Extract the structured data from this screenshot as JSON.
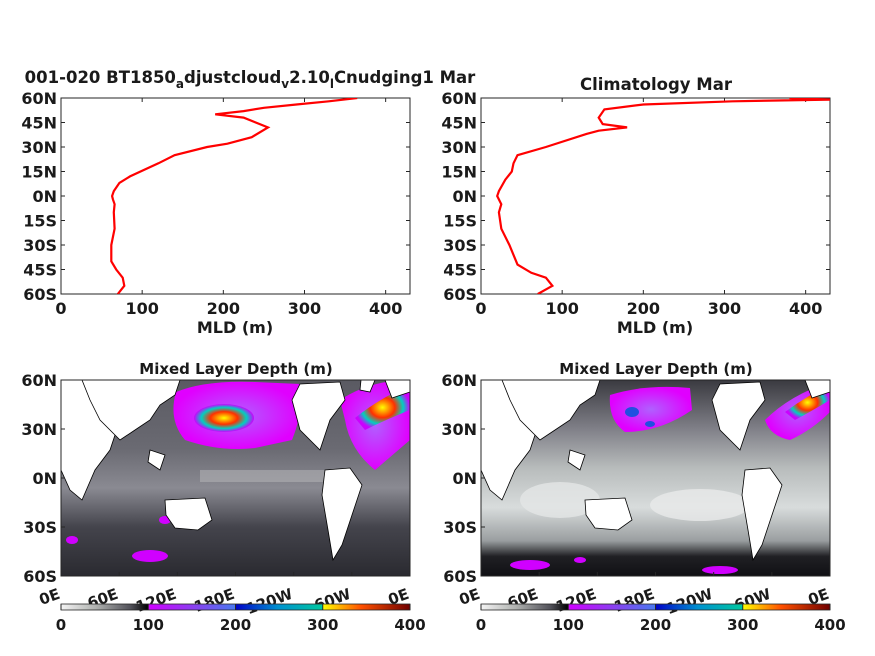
{
  "chart_data": [
    {
      "type": "line",
      "title_parts": [
        "001-020 BT1850",
        "a",
        "djustcloud",
        "v",
        "2.10",
        "l",
        "Cnudging1 Mar"
      ],
      "xlabel": "MLD (m)",
      "xlim": [
        0,
        430
      ],
      "ylim": [
        -60,
        60
      ],
      "xticks": [
        "0",
        "100",
        "200",
        "300",
        "400"
      ],
      "xtick_values": [
        0,
        100,
        200,
        300,
        400
      ],
      "yticks": [
        "60N",
        "45N",
        "30N",
        "15N",
        "0N",
        "15S",
        "30S",
        "45S",
        "60S"
      ],
      "ytick_values": [
        60,
        45,
        30,
        15,
        0,
        -15,
        -30,
        -45,
        -60
      ],
      "line_color": "#ff0000",
      "series": [
        {
          "x": [
            70,
            78,
            76,
            68,
            62,
            62,
            66,
            65,
            66,
            64,
            63,
            65,
            72,
            85,
            120,
            140,
            180,
            205,
            235,
            255,
            225,
            190,
            225,
            250,
            290,
            330,
            365
          ],
          "y": [
            -60,
            -55,
            -50,
            -45,
            -40,
            -30,
            -20,
            -10,
            -5,
            -2,
            0,
            3,
            8,
            12,
            20,
            25,
            30,
            32,
            36,
            42,
            48,
            50,
            52,
            54,
            56,
            58,
            60
          ]
        }
      ]
    },
    {
      "type": "line",
      "title_parts": [
        "Climatology Mar"
      ],
      "xlabel": "MLD (m)",
      "xlim": [
        0,
        430
      ],
      "ylim": [
        -60,
        60
      ],
      "xticks": [
        "0",
        "100",
        "200",
        "300",
        "400"
      ],
      "xtick_values": [
        0,
        100,
        200,
        300,
        400
      ],
      "yticks": [
        "60N",
        "45N",
        "30N",
        "15N",
        "0N",
        "15S",
        "30S",
        "45S",
        "60S"
      ],
      "ytick_values": [
        60,
        45,
        30,
        15,
        0,
        -15,
        -30,
        -45,
        -60
      ],
      "line_color": "#ff0000",
      "series": [
        {
          "x": [
            70,
            88,
            80,
            62,
            45,
            35,
            25,
            22,
            25,
            20,
            22,
            30,
            38,
            40,
            45,
            80,
            130,
            145,
            180,
            150,
            145,
            152,
            200,
            310,
            430,
            380
          ],
          "y": [
            -60,
            -55,
            -50,
            -47,
            -42,
            -30,
            -20,
            -10,
            -5,
            0,
            3,
            10,
            15,
            20,
            25,
            30,
            38,
            40,
            42,
            44,
            48,
            53,
            56,
            58,
            59,
            60
          ]
        }
      ]
    },
    {
      "type": "heatmap",
      "title": "Mixed Layer Depth (m)",
      "xlim": [
        0,
        360
      ],
      "ylim": [
        -60,
        60
      ],
      "xticks": [
        "0E",
        "60E",
        "120E",
        "180E",
        "120W",
        "60W",
        "0E"
      ],
      "xtick_values": [
        0,
        60,
        120,
        180,
        240,
        300,
        360
      ],
      "yticks": [
        "60N",
        "30N",
        "0N",
        "30S",
        "60S"
      ],
      "ytick_values": [
        60,
        30,
        0,
        -30,
        -60
      ],
      "colorbar_ticks": [
        "0",
        "100",
        "200",
        "300",
        "400"
      ],
      "colorbar_values": [
        0,
        100,
        200,
        300,
        400
      ],
      "colormap": [
        [
          0,
          "#f0f0f0"
        ],
        [
          40,
          "#a8aaa8"
        ],
        [
          80,
          "#4a4a52"
        ],
        [
          100,
          "#000000"
        ],
        [
          100,
          "#cc00ff"
        ],
        [
          150,
          "#8a3cf0"
        ],
        [
          190,
          "#6070f0"
        ],
        [
          200,
          "#4060f0"
        ],
        [
          200,
          "#0000c8"
        ],
        [
          250,
          "#0080d0"
        ],
        [
          300,
          "#00c8a0"
        ],
        [
          300,
          "#ffff00"
        ],
        [
          350,
          "#ff4000"
        ],
        [
          400,
          "#600000"
        ]
      ],
      "features": [
        {
          "name": "kuroshio-extension",
          "lon": [
            145,
            195
          ],
          "lat": [
            30,
            45
          ],
          "value": 380
        },
        {
          "name": "north-atlantic",
          "lon": [
            305,
            360
          ],
          "lat": [
            45,
            60
          ],
          "value": 390
        },
        {
          "name": "subtropical-north-pacific",
          "lon": [
            130,
            250
          ],
          "lat": [
            15,
            55
          ],
          "value": 110
        },
        {
          "name": "southern-ocean-patches",
          "lon": [
            60,
            220
          ],
          "lat": [
            -60,
            -40
          ],
          "value": 110
        }
      ]
    },
    {
      "type": "heatmap",
      "title": "Mixed Layer Depth (m)",
      "xlim": [
        0,
        360
      ],
      "ylim": [
        -60,
        60
      ],
      "xticks": [
        "0E",
        "60E",
        "120E",
        "180E",
        "120W",
        "60W",
        "0E"
      ],
      "xtick_values": [
        0,
        60,
        120,
        180,
        240,
        300,
        360
      ],
      "yticks": [
        "60N",
        "30N",
        "0N",
        "30S",
        "60S"
      ],
      "ytick_values": [
        60,
        30,
        0,
        -30,
        -60
      ],
      "colorbar_ticks": [
        "0",
        "100",
        "200",
        "300",
        "400"
      ],
      "colorbar_values": [
        0,
        100,
        200,
        300,
        400
      ],
      "colormap": [
        [
          0,
          "#f0f0f0"
        ],
        [
          40,
          "#a8aaa8"
        ],
        [
          80,
          "#4a4a52"
        ],
        [
          100,
          "#000000"
        ],
        [
          100,
          "#cc00ff"
        ],
        [
          150,
          "#8a3cf0"
        ],
        [
          190,
          "#6070f0"
        ],
        [
          200,
          "#4060f0"
        ],
        [
          200,
          "#0000c8"
        ],
        [
          250,
          "#0080d0"
        ],
        [
          300,
          "#00c8a0"
        ],
        [
          300,
          "#ffff00"
        ],
        [
          350,
          "#ff4000"
        ],
        [
          400,
          "#600000"
        ]
      ],
      "features": [
        {
          "name": "north-pacific",
          "lon": [
            140,
            210
          ],
          "lat": [
            30,
            50
          ],
          "value": 140
        },
        {
          "name": "north-atlantic",
          "lon": [
            300,
            360
          ],
          "lat": [
            35,
            60
          ],
          "value": 360
        },
        {
          "name": "southern-ocean-band",
          "lon": [
            0,
            360
          ],
          "lat": [
            -60,
            -45
          ],
          "value": 95
        }
      ]
    }
  ]
}
